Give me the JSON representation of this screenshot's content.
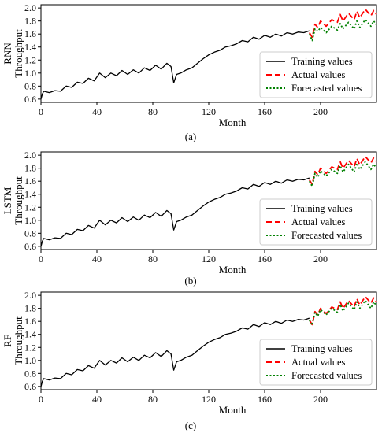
{
  "figure": {
    "xlabel": "Month",
    "ylabel": "Throughput",
    "legend": {
      "placement": "lower-right",
      "entries": [
        {
          "label": "Training values",
          "color": "#000000",
          "style": "solid"
        },
        {
          "label": "Actual values",
          "color": "#ff0000",
          "style": "dashed"
        },
        {
          "label": "Forecasted values",
          "color": "#008000",
          "style": "dotted"
        }
      ]
    },
    "xticks": [
      "0",
      "40",
      "80",
      "120",
      "160",
      "200"
    ],
    "yticks": [
      "0.6",
      "0.8",
      "1.0",
      "1.2",
      "1.4",
      "1.6",
      "1.8",
      "2.0"
    ]
  },
  "chart_data": [
    {
      "type": "line",
      "panel": "(a)",
      "model": "RNN",
      "xlabel": "Month",
      "ylabel": "Throughput",
      "xlim": [
        0,
        240
      ],
      "ylim": [
        0.55,
        2.05
      ],
      "grid": false,
      "series": [
        {
          "name": "Training values",
          "color": "#000000",
          "x": [
            0,
            1,
            2,
            6,
            10,
            14,
            18,
            22,
            26,
            30,
            34,
            38,
            42,
            46,
            50,
            54,
            58,
            62,
            66,
            70,
            74,
            78,
            82,
            86,
            90,
            93,
            95,
            97,
            100,
            104,
            108,
            112,
            116,
            120,
            124,
            128,
            132,
            136,
            140,
            144,
            148,
            152,
            156,
            160,
            164,
            168,
            172,
            176,
            180,
            184,
            188,
            192
          ],
          "y": [
            0.6,
            0.68,
            0.72,
            0.7,
            0.73,
            0.72,
            0.8,
            0.78,
            0.86,
            0.84,
            0.92,
            0.88,
            1.0,
            0.93,
            1.0,
            0.96,
            1.04,
            0.98,
            1.05,
            1.0,
            1.08,
            1.04,
            1.12,
            1.06,
            1.15,
            1.1,
            0.85,
            0.98,
            1.0,
            1.05,
            1.08,
            1.15,
            1.22,
            1.28,
            1.32,
            1.35,
            1.4,
            1.42,
            1.45,
            1.5,
            1.48,
            1.55,
            1.52,
            1.58,
            1.55,
            1.6,
            1.57,
            1.62,
            1.6,
            1.63,
            1.62,
            1.65
          ]
        },
        {
          "name": "Actual values",
          "color": "#ff0000",
          "x": [
            192,
            194,
            196,
            198,
            200,
            204,
            208,
            212,
            214,
            216,
            220,
            224,
            226,
            228,
            232,
            236,
            238,
            240
          ],
          "y": [
            1.62,
            1.55,
            1.75,
            1.7,
            1.8,
            1.72,
            1.82,
            1.78,
            1.9,
            1.8,
            1.92,
            1.82,
            1.95,
            1.85,
            1.98,
            1.88,
            1.96,
            1.9
          ]
        },
        {
          "name": "Forecasted values",
          "color": "#008000",
          "x": [
            192,
            194,
            196,
            198,
            200,
            204,
            208,
            212,
            214,
            216,
            220,
            224,
            226,
            228,
            232,
            236,
            238,
            240
          ],
          "y": [
            1.6,
            1.5,
            1.68,
            1.64,
            1.7,
            1.62,
            1.72,
            1.66,
            1.76,
            1.68,
            1.78,
            1.68,
            1.8,
            1.7,
            1.82,
            1.72,
            1.8,
            1.74
          ]
        }
      ]
    },
    {
      "type": "line",
      "panel": "(b)",
      "model": "LSTM",
      "xlabel": "Month",
      "ylabel": "Throughput",
      "xlim": [
        0,
        240
      ],
      "ylim": [
        0.55,
        2.05
      ],
      "grid": false,
      "series": [
        {
          "name": "Training values",
          "color": "#000000",
          "x": [
            0,
            1,
            2,
            6,
            10,
            14,
            18,
            22,
            26,
            30,
            34,
            38,
            42,
            46,
            50,
            54,
            58,
            62,
            66,
            70,
            74,
            78,
            82,
            86,
            90,
            93,
            95,
            97,
            100,
            104,
            108,
            112,
            116,
            120,
            124,
            128,
            132,
            136,
            140,
            144,
            148,
            152,
            156,
            160,
            164,
            168,
            172,
            176,
            180,
            184,
            188,
            192
          ],
          "y": [
            0.6,
            0.68,
            0.72,
            0.7,
            0.73,
            0.72,
            0.8,
            0.78,
            0.86,
            0.84,
            0.92,
            0.88,
            1.0,
            0.93,
            1.0,
            0.96,
            1.04,
            0.98,
            1.05,
            1.0,
            1.08,
            1.04,
            1.12,
            1.06,
            1.15,
            1.1,
            0.85,
            0.98,
            1.0,
            1.05,
            1.08,
            1.15,
            1.22,
            1.28,
            1.32,
            1.35,
            1.4,
            1.42,
            1.45,
            1.5,
            1.48,
            1.55,
            1.52,
            1.58,
            1.55,
            1.6,
            1.57,
            1.62,
            1.6,
            1.63,
            1.62,
            1.65
          ]
        },
        {
          "name": "Actual values",
          "color": "#ff0000",
          "x": [
            192,
            194,
            196,
            198,
            200,
            204,
            208,
            212,
            214,
            216,
            220,
            224,
            226,
            228,
            232,
            236,
            238,
            240
          ],
          "y": [
            1.62,
            1.55,
            1.75,
            1.7,
            1.8,
            1.72,
            1.82,
            1.78,
            1.9,
            1.8,
            1.92,
            1.82,
            1.95,
            1.85,
            1.98,
            1.88,
            1.96,
            1.9
          ]
        },
        {
          "name": "Forecasted values",
          "color": "#008000",
          "x": [
            192,
            194,
            196,
            198,
            200,
            204,
            208,
            212,
            214,
            216,
            220,
            224,
            226,
            228,
            232,
            236,
            238,
            240
          ],
          "y": [
            1.6,
            1.52,
            1.72,
            1.66,
            1.76,
            1.68,
            1.78,
            1.72,
            1.84,
            1.74,
            1.86,
            1.74,
            1.88,
            1.78,
            1.9,
            1.78,
            1.86,
            1.8
          ]
        }
      ]
    },
    {
      "type": "line",
      "panel": "(c)",
      "model": "RF",
      "xlabel": "Month",
      "ylabel": "Throughput",
      "xlim": [
        0,
        240
      ],
      "ylim": [
        0.55,
        2.05
      ],
      "grid": false,
      "series": [
        {
          "name": "Training values",
          "color": "#000000",
          "x": [
            0,
            1,
            2,
            6,
            10,
            14,
            18,
            22,
            26,
            30,
            34,
            38,
            42,
            46,
            50,
            54,
            58,
            62,
            66,
            70,
            74,
            78,
            82,
            86,
            90,
            93,
            95,
            97,
            100,
            104,
            108,
            112,
            116,
            120,
            124,
            128,
            132,
            136,
            140,
            144,
            148,
            152,
            156,
            160,
            164,
            168,
            172,
            176,
            180,
            184,
            188,
            192
          ],
          "y": [
            0.6,
            0.68,
            0.72,
            0.7,
            0.73,
            0.72,
            0.8,
            0.78,
            0.86,
            0.84,
            0.92,
            0.88,
            1.0,
            0.93,
            1.0,
            0.96,
            1.04,
            0.98,
            1.05,
            1.0,
            1.08,
            1.04,
            1.12,
            1.06,
            1.15,
            1.1,
            0.85,
            0.98,
            1.0,
            1.05,
            1.08,
            1.15,
            1.22,
            1.28,
            1.32,
            1.35,
            1.4,
            1.42,
            1.45,
            1.5,
            1.48,
            1.55,
            1.52,
            1.58,
            1.55,
            1.6,
            1.57,
            1.62,
            1.6,
            1.63,
            1.62,
            1.65
          ]
        },
        {
          "name": "Actual values",
          "color": "#ff0000",
          "x": [
            192,
            194,
            196,
            198,
            200,
            204,
            208,
            212,
            214,
            216,
            220,
            224,
            226,
            228,
            232,
            236,
            238,
            240
          ],
          "y": [
            1.62,
            1.55,
            1.75,
            1.7,
            1.8,
            1.72,
            1.82,
            1.78,
            1.9,
            1.8,
            1.92,
            1.82,
            1.95,
            1.85,
            1.98,
            1.88,
            1.96,
            1.9
          ]
        },
        {
          "name": "Forecasted values",
          "color": "#008000",
          "x": [
            192,
            194,
            196,
            198,
            200,
            204,
            208,
            212,
            214,
            216,
            220,
            224,
            226,
            228,
            232,
            236,
            238,
            240
          ],
          "y": [
            1.62,
            1.54,
            1.74,
            1.68,
            1.78,
            1.7,
            1.8,
            1.74,
            1.86,
            1.76,
            1.88,
            1.78,
            1.9,
            1.8,
            1.92,
            1.8,
            1.9,
            1.84
          ]
        }
      ]
    }
  ]
}
